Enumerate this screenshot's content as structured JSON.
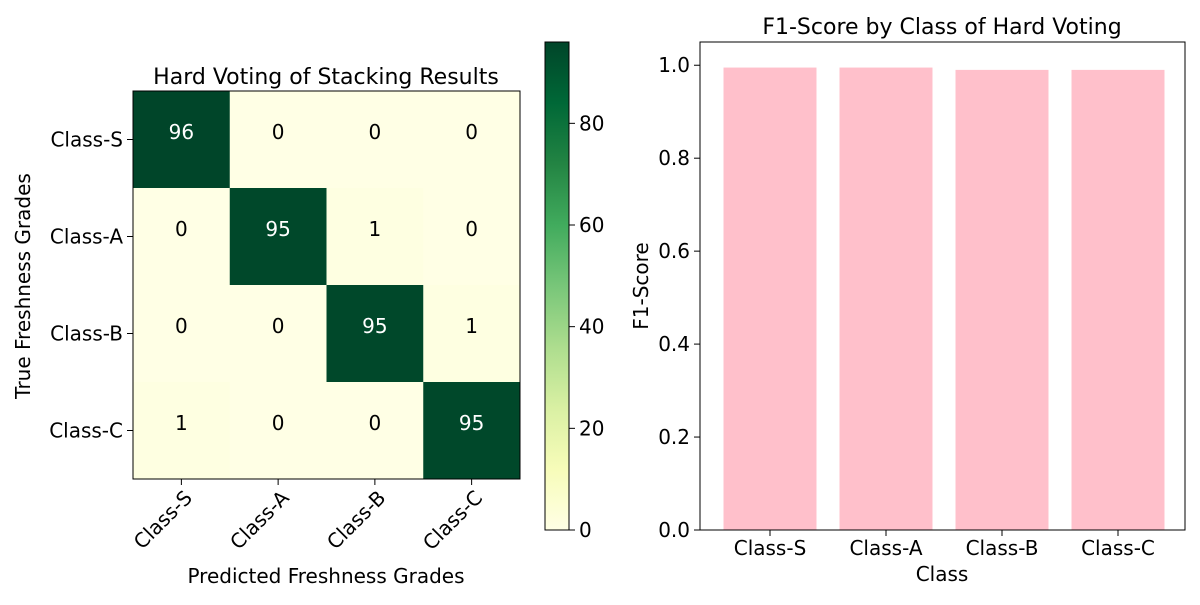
{
  "chart_data": [
    {
      "type": "heatmap",
      "title": "Hard Voting of Stacking Results",
      "xlabel": "Predicted Freshness Grades",
      "ylabel": "True Freshness Grades",
      "x_categories": [
        "Class-S",
        "Class-A",
        "Class-B",
        "Class-C"
      ],
      "y_categories": [
        "Class-S",
        "Class-A",
        "Class-B",
        "Class-C"
      ],
      "values": [
        [
          96,
          0,
          0,
          0
        ],
        [
          0,
          95,
          1,
          0
        ],
        [
          0,
          0,
          95,
          1
        ],
        [
          1,
          0,
          0,
          95
        ]
      ],
      "colormap": "YlGn",
      "colorbar": {
        "range": [
          0,
          96
        ],
        "ticks": [
          0,
          20,
          40,
          60,
          80
        ]
      },
      "colors": {
        "low": "#ffffe5",
        "high": "#004529",
        "text_dark": "#000000",
        "text_light": "#ffffff"
      }
    },
    {
      "type": "bar",
      "title": "F1-Score by Class of Hard Voting",
      "xlabel": "Class",
      "ylabel": "F1-Score",
      "categories": [
        "Class-S",
        "Class-A",
        "Class-B",
        "Class-C"
      ],
      "values": [
        0.995,
        0.995,
        0.99,
        0.99
      ],
      "ylim": [
        0,
        1.05
      ],
      "yticks": [
        0.0,
        0.2,
        0.4,
        0.6,
        0.8,
        1.0
      ],
      "color": "#ffc0cb",
      "grid": false
    }
  ]
}
